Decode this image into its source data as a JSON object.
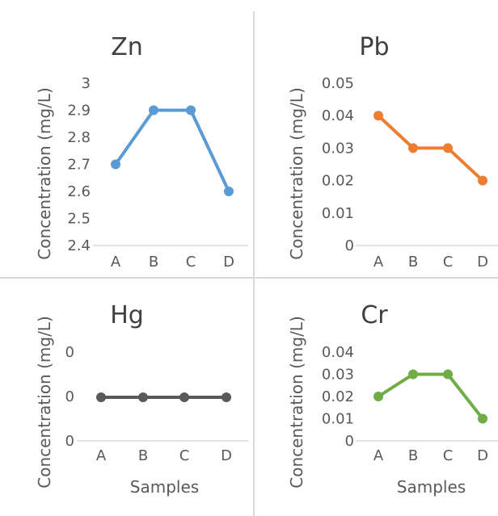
{
  "chart_data": [
    {
      "type": "line",
      "title": "Zn",
      "ylabel": "Concentration (mg/L)",
      "xlabel": "",
      "categories": [
        "A",
        "B",
        "C",
        "D"
      ],
      "ylim": [
        2.4,
        3.0
      ],
      "yticks": [
        "2.4",
        "2.5",
        "2.6",
        "2.7",
        "2.8",
        "2.9",
        "3"
      ],
      "color": "#5b9bd5",
      "series": [
        {
          "values": [
            2.7,
            2.9,
            2.9,
            2.6
          ]
        }
      ]
    },
    {
      "type": "line",
      "title": "Pb",
      "ylabel": "Concentration (mg/L)",
      "xlabel": "",
      "categories": [
        "A",
        "B",
        "C",
        "D"
      ],
      "ylim": [
        0,
        0.05
      ],
      "yticks": [
        "0",
        "0.01",
        "0.02",
        "0.03",
        "0.04",
        "0.05"
      ],
      "color": "#ed7d31",
      "series": [
        {
          "values": [
            0.04,
            0.03,
            0.03,
            0.02
          ]
        }
      ]
    },
    {
      "type": "line",
      "title": "Hg",
      "ylabel": "Concentration (mg/L)",
      "xlabel": "Samples",
      "categories": [
        "A",
        "B",
        "C",
        "D"
      ],
      "ylim": [
        -0.0001,
        0.0001
      ],
      "yticks": [
        "0",
        "0",
        "0"
      ],
      "color": "#595959",
      "series": [
        {
          "values": [
            0,
            0,
            0,
            0
          ]
        }
      ]
    },
    {
      "type": "line",
      "title": "Cr",
      "ylabel": "Concentration (mg/L)",
      "xlabel": "Samples",
      "categories": [
        "A",
        "B",
        "C",
        "D"
      ],
      "ylim": [
        0,
        0.04
      ],
      "yticks": [
        "0",
        "0.01",
        "0.02",
        "0.03",
        "0.04"
      ],
      "color": "#70ad47",
      "series": [
        {
          "values": [
            0.02,
            0.03,
            0.03,
            0.01
          ]
        }
      ]
    }
  ]
}
